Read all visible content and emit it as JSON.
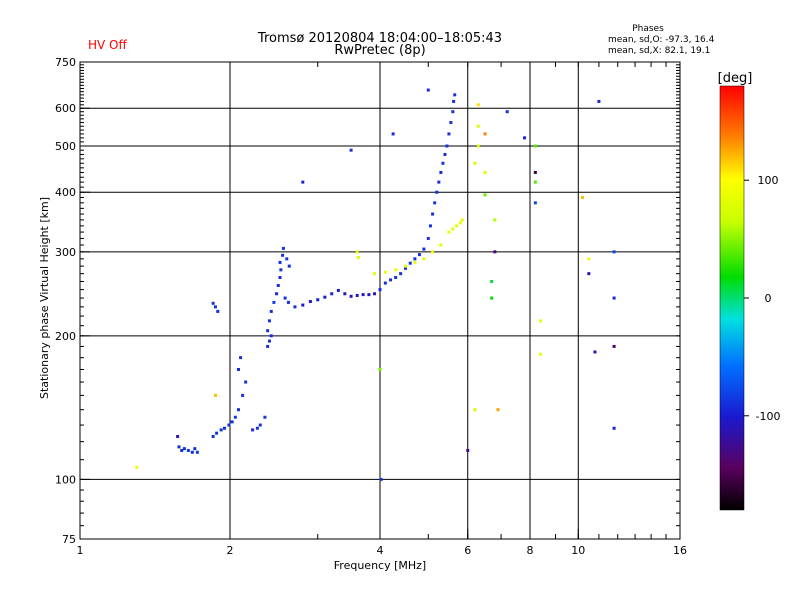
{
  "header": {
    "title": "Tromsø 20120804 18:04:00–18:05:43",
    "subtitle": "RwPretec (8p)",
    "hv_status": "HV Off",
    "phases_title": "Phases",
    "phases_o": "mean, sd,O: -97.3, 16.4",
    "phases_x": "mean, sd,X:  82.1, 19.1"
  },
  "colors": {
    "hv_status": "#ff0000",
    "grid": "#000000"
  },
  "colorbar": {
    "unit": "[deg]",
    "ticks": [
      {
        "value": 100,
        "label": "100"
      },
      {
        "value": 0,
        "label": "0"
      },
      {
        "value": -100,
        "label": "-100"
      }
    ],
    "range": [
      -180,
      180
    ]
  },
  "chart_data": {
    "type": "scatter",
    "title": "Tromsø 20120804 18:04:00–18:05:43",
    "subtitle": "RwPretec (8p)",
    "xlabel": "Frequency [MHz]",
    "ylabel": "Stationary phase Virtual Height [km]",
    "x_scale": "log",
    "y_scale": "log",
    "xlim": [
      1,
      16
    ],
    "ylim": [
      75,
      750
    ],
    "x_ticks": [
      {
        "value": 1,
        "label": "1"
      },
      {
        "value": 2,
        "label": "2"
      },
      {
        "value": 4,
        "label": "4"
      },
      {
        "value": 6,
        "label": "6"
      },
      {
        "value": 8,
        "label": "8"
      },
      {
        "value": 10,
        "label": "10"
      },
      {
        "value": 16,
        "label": "16"
      }
    ],
    "y_ticks": [
      {
        "value": 75,
        "label": "75"
      },
      {
        "value": 100,
        "label": "100"
      },
      {
        "value": 200,
        "label": "200"
      },
      {
        "value": 300,
        "label": "300"
      },
      {
        "value": 400,
        "label": "400"
      },
      {
        "value": 500,
        "label": "500"
      },
      {
        "value": 600,
        "label": "600"
      },
      {
        "value": 750,
        "label": "750"
      }
    ],
    "x_grid": [
      2,
      4,
      6,
      8,
      10
    ],
    "y_grid": [
      100,
      200,
      300,
      400,
      500,
      600
    ],
    "color_encodes": "phase [deg]",
    "points": [
      [
        1.6,
        115,
        -110
      ],
      [
        1.62,
        116,
        -110
      ],
      [
        1.65,
        115,
        -105
      ],
      [
        1.68,
        114,
        -110
      ],
      [
        1.7,
        116,
        -110
      ],
      [
        1.72,
        114,
        -105
      ],
      [
        1.58,
        117,
        -110
      ],
      [
        1.57,
        123,
        -125
      ],
      [
        1.85,
        234,
        -110
      ],
      [
        1.87,
        230,
        -110
      ],
      [
        1.89,
        225,
        -110
      ],
      [
        1.85,
        123,
        -110
      ],
      [
        1.88,
        125,
        -110
      ],
      [
        1.92,
        127,
        -105
      ],
      [
        1.95,
        128,
        -110
      ],
      [
        1.99,
        130,
        -110
      ],
      [
        2.02,
        132,
        -110
      ],
      [
        2.05,
        135,
        -105
      ],
      [
        2.08,
        140,
        -110
      ],
      [
        2.12,
        150,
        -110
      ],
      [
        2.15,
        160,
        -110
      ],
      [
        2.08,
        170,
        -110
      ],
      [
        2.1,
        180,
        -110
      ],
      [
        2.22,
        127,
        -110
      ],
      [
        2.27,
        128,
        -110
      ],
      [
        2.3,
        130,
        -110
      ],
      [
        2.35,
        135,
        -105
      ],
      [
        2.38,
        190,
        -110
      ],
      [
        2.4,
        195,
        -110
      ],
      [
        2.42,
        200,
        -110
      ],
      [
        2.38,
        205,
        -110
      ],
      [
        2.4,
        215,
        -110
      ],
      [
        2.42,
        225,
        -110
      ],
      [
        2.45,
        235,
        -105
      ],
      [
        2.48,
        245,
        -110
      ],
      [
        2.5,
        255,
        -110
      ],
      [
        2.52,
        265,
        -110
      ],
      [
        2.53,
        275,
        -110
      ],
      [
        2.52,
        285,
        -110
      ],
      [
        2.55,
        295,
        -110
      ],
      [
        2.56,
        305,
        -110
      ],
      [
        2.6,
        290,
        -110
      ],
      [
        2.63,
        280,
        -110
      ],
      [
        2.58,
        240,
        -110
      ],
      [
        2.62,
        235,
        -110
      ],
      [
        2.7,
        230,
        -110
      ],
      [
        2.8,
        232,
        -120
      ],
      [
        2.9,
        236,
        -120
      ],
      [
        3.0,
        238,
        -120
      ],
      [
        3.1,
        241,
        -120
      ],
      [
        3.2,
        245,
        -115
      ],
      [
        3.3,
        249,
        -120
      ],
      [
        3.4,
        245,
        -125
      ],
      [
        3.5,
        242,
        -125
      ],
      [
        3.6,
        243,
        -125
      ],
      [
        3.7,
        244,
        -125
      ],
      [
        3.8,
        244,
        -125
      ],
      [
        3.9,
        245,
        -125
      ],
      [
        4.0,
        250,
        -110
      ],
      [
        4.1,
        258,
        -110
      ],
      [
        4.2,
        262,
        -110
      ],
      [
        4.3,
        265,
        -110
      ],
      [
        4.4,
        270,
        -110
      ],
      [
        4.5,
        277,
        -110
      ],
      [
        4.6,
        284,
        -110
      ],
      [
        4.7,
        290,
        -110
      ],
      [
        4.8,
        296,
        -110
      ],
      [
        4.9,
        304,
        -110
      ],
      [
        5.0,
        320,
        -110
      ],
      [
        5.05,
        340,
        -110
      ],
      [
        5.1,
        360,
        -110
      ],
      [
        5.15,
        380,
        -110
      ],
      [
        5.2,
        400,
        -110
      ],
      [
        5.25,
        420,
        -110
      ],
      [
        5.3,
        440,
        -110
      ],
      [
        5.35,
        460,
        -110
      ],
      [
        5.4,
        480,
        -110
      ],
      [
        5.45,
        500,
        -110
      ],
      [
        5.5,
        530,
        -110
      ],
      [
        5.55,
        560,
        -110
      ],
      [
        5.6,
        590,
        -110
      ],
      [
        5.62,
        620,
        -110
      ],
      [
        5.65,
        640,
        -110
      ],
      [
        3.6,
        300,
        65
      ],
      [
        3.62,
        292,
        70
      ],
      [
        3.9,
        270,
        75
      ],
      [
        4.1,
        272,
        75
      ],
      [
        4.3,
        275,
        80
      ],
      [
        4.5,
        280,
        75
      ],
      [
        4.7,
        285,
        80
      ],
      [
        4.9,
        290,
        80
      ],
      [
        5.1,
        300,
        80
      ],
      [
        5.3,
        310,
        75
      ],
      [
        5.5,
        330,
        80
      ],
      [
        5.6,
        335,
        75
      ],
      [
        5.7,
        340,
        75
      ],
      [
        5.8,
        345,
        75
      ],
      [
        5.85,
        350,
        70
      ],
      [
        6.2,
        460,
        60
      ],
      [
        6.3,
        500,
        60
      ],
      [
        6.3,
        550,
        60
      ],
      [
        6.5,
        440,
        70
      ],
      [
        6.5,
        395,
        25
      ],
      [
        8.2,
        420,
        20
      ],
      [
        8.2,
        500,
        20
      ],
      [
        6.8,
        350,
        45
      ],
      [
        8.4,
        215,
        75
      ],
      [
        8.4,
        183,
        75
      ],
      [
        6.7,
        260,
        -5
      ],
      [
        6.7,
        240,
        0
      ],
      [
        8.2,
        380,
        -100
      ],
      [
        11.8,
        300,
        -100
      ],
      [
        11.8,
        240,
        -115
      ],
      [
        11.8,
        190,
        -145
      ],
      [
        11.8,
        128,
        -115
      ],
      [
        6.8,
        300,
        -140
      ],
      [
        6.0,
        115,
        -140
      ],
      [
        2.8,
        420,
        -115
      ],
      [
        3.5,
        490,
        -110
      ],
      [
        4.25,
        530,
        -115
      ],
      [
        5.0,
        655,
        -110
      ],
      [
        7.2,
        590,
        -110
      ],
      [
        7.8,
        520,
        -115
      ],
      [
        11.0,
        620,
        -115
      ],
      [
        6.2,
        140,
        60
      ],
      [
        10.5,
        270,
        -130
      ],
      [
        10.5,
        290,
        80
      ],
      [
        10.8,
        185,
        -125
      ],
      [
        10.2,
        390,
        120
      ],
      [
        8.2,
        440,
        -160
      ],
      [
        1.3,
        106,
        80
      ],
      [
        1.87,
        150,
        120
      ],
      [
        6.5,
        530,
        140
      ],
      [
        6.9,
        140,
        130
      ],
      [
        6.3,
        610,
        110
      ],
      [
        4.0,
        170,
        30
      ],
      [
        4.02,
        100,
        -110
      ]
    ]
  }
}
